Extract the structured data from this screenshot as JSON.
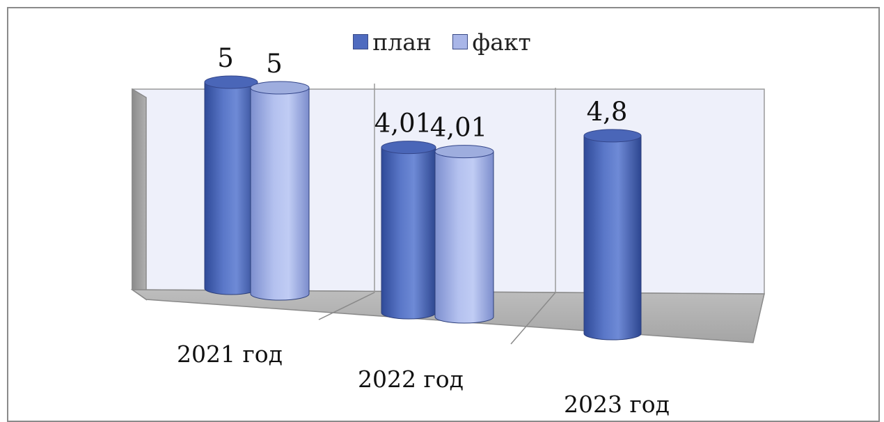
{
  "chart_data": {
    "type": "bar",
    "categories": [
      "2021 год",
      "2022 год",
      "2023 год"
    ],
    "series": [
      {
        "name": "план",
        "values": [
          5,
          4.01,
          4.8
        ],
        "labels": [
          "5",
          "4,01",
          "4,8"
        ],
        "color": "#4f6bbf"
      },
      {
        "name": "факт",
        "values": [
          5,
          4.01,
          null
        ],
        "labels": [
          "5",
          "4,01",
          ""
        ],
        "color": "#a9b6e8"
      }
    ],
    "legend_position": "top",
    "grid": true
  }
}
